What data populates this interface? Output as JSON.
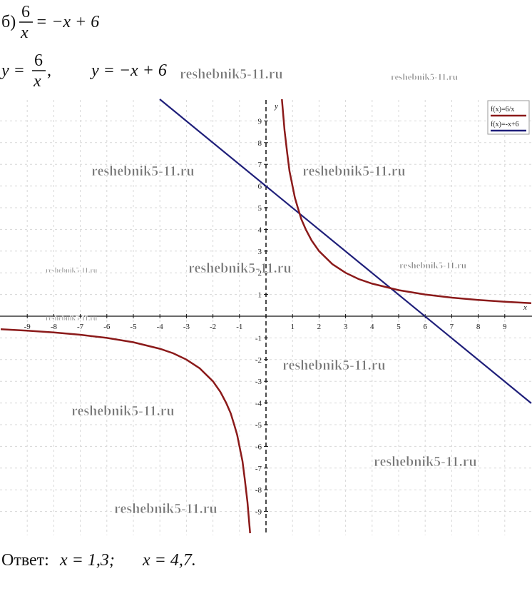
{
  "problem": {
    "label": "б)",
    "num": "6",
    "den": "x",
    "rhs": "= −x + 6"
  },
  "functions": {
    "lhs": "y =",
    "num": "6",
    "den": "x",
    "sep": ",",
    "second": "y = −x + 6"
  },
  "graph": {
    "xlabel": "x",
    "ylabel": "y",
    "xticks": [
      -9,
      -8,
      -7,
      -6,
      -5,
      -4,
      -3,
      -2,
      -1,
      1,
      2,
      3,
      4,
      5,
      6,
      7,
      8,
      9
    ],
    "yticks": [
      9,
      8,
      7,
      6,
      5,
      4,
      3,
      2,
      1,
      -1,
      -2,
      -3,
      -4,
      -5,
      -6,
      -7,
      -8,
      -9
    ],
    "legend": [
      "f(x)=6/x",
      "f(x)=-x+6"
    ]
  },
  "answer": {
    "label": "Ответ:",
    "solutions": [
      "x = 1,3;",
      "x = 4,7."
    ]
  },
  "watermark": "reshebnik5-11.ru"
}
